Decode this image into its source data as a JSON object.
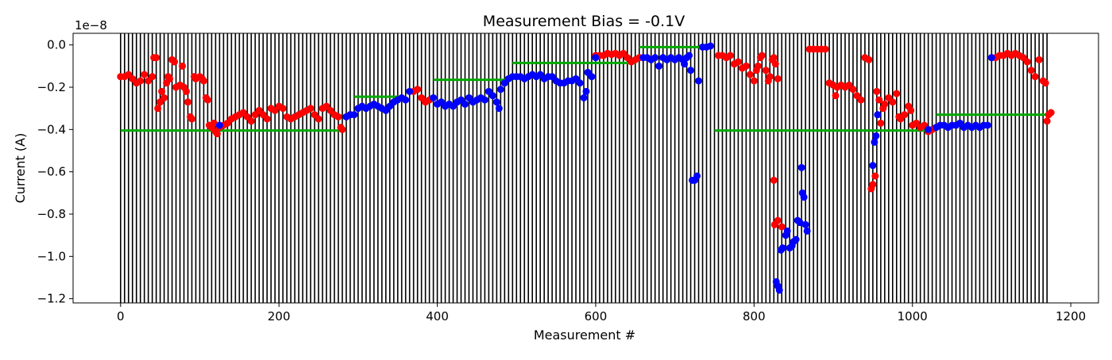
{
  "chart_data": {
    "type": "scatter",
    "title": "Measurement Bias = -0.1V",
    "xlabel": "Measurement #",
    "ylabel": "Current (A)",
    "y_offset_label": "1e−8",
    "xlim": [
      -60,
      1235
    ],
    "ylim": [
      -1.22,
      0.055
    ],
    "x_ticks": [
      0,
      200,
      400,
      600,
      800,
      1000,
      1200
    ],
    "x_tick_labels": [
      "0",
      "200",
      "400",
      "600",
      "800",
      "1000",
      "1200"
    ],
    "y_ticks": [
      0.0,
      -0.2,
      -0.4,
      -0.6,
      -0.8,
      -1.0,
      -1.2
    ],
    "y_tick_labels": [
      "0.0",
      "−0.2",
      "−0.4",
      "−0.6",
      "−0.8",
      "−1.0",
      "−1.2"
    ],
    "vlines": {
      "color": "#000000",
      "start": 0,
      "end": 1170,
      "step": 5
    },
    "hlines": {
      "color": "#00aa00",
      "segments": [
        {
          "x0": 0,
          "x1": 280,
          "y": -0.405
        },
        {
          "x0": 295,
          "x1": 350,
          "y": -0.245
        },
        {
          "x0": 395,
          "x1": 495,
          "y": -0.165
        },
        {
          "x0": 495,
          "x1": 650,
          "y": -0.085
        },
        {
          "x0": 655,
          "x1": 735,
          "y": -0.01
        },
        {
          "x0": 750,
          "x1": 1030,
          "y": -0.405
        },
        {
          "x0": 1030,
          "x1": 1170,
          "y": -0.33
        }
      ]
    },
    "series": [
      {
        "color": "#ff0000",
        "marker_size": 4.5,
        "points": [
          [
            0,
            -0.15
          ],
          [
            5,
            -0.15
          ],
          [
            10,
            -0.14
          ],
          [
            15,
            -0.16
          ],
          [
            20,
            -0.18
          ],
          [
            25,
            -0.17
          ],
          [
            30,
            -0.14
          ],
          [
            35,
            -0.17
          ],
          [
            40,
            -0.15
          ],
          [
            42,
            -0.06
          ],
          [
            45,
            -0.06
          ],
          [
            47,
            -0.3
          ],
          [
            50,
            -0.27
          ],
          [
            52,
            -0.22
          ],
          [
            55,
            -0.25
          ],
          [
            58,
            -0.18
          ],
          [
            60,
            -0.15
          ],
          [
            62,
            -0.16
          ],
          [
            65,
            -0.07
          ],
          [
            68,
            -0.08
          ],
          [
            70,
            -0.2
          ],
          [
            75,
            -0.19
          ],
          [
            78,
            -0.1
          ],
          [
            80,
            -0.2
          ],
          [
            83,
            -0.22
          ],
          [
            85,
            -0.27
          ],
          [
            88,
            -0.34
          ],
          [
            90,
            -0.35
          ],
          [
            93,
            -0.15
          ],
          [
            95,
            -0.16
          ],
          [
            100,
            -0.15
          ],
          [
            103,
            -0.16
          ],
          [
            105,
            -0.17
          ],
          [
            108,
            -0.25
          ],
          [
            110,
            -0.26
          ],
          [
            112,
            -0.38
          ],
          [
            115,
            -0.39
          ],
          [
            118,
            -0.37
          ],
          [
            120,
            -0.41
          ],
          [
            122,
            -0.42
          ],
          [
            125,
            -0.39
          ],
          [
            130,
            -0.38
          ],
          [
            135,
            -0.37
          ],
          [
            140,
            -0.35
          ],
          [
            145,
            -0.34
          ],
          [
            150,
            -0.33
          ],
          [
            155,
            -0.32
          ],
          [
            160,
            -0.34
          ],
          [
            165,
            -0.36
          ],
          [
            170,
            -0.33
          ],
          [
            175,
            -0.31
          ],
          [
            180,
            -0.33
          ],
          [
            185,
            -0.35
          ],
          [
            190,
            -0.3
          ],
          [
            195,
            -0.31
          ],
          [
            200,
            -0.29
          ],
          [
            205,
            -0.3
          ],
          [
            210,
            -0.34
          ],
          [
            215,
            -0.35
          ],
          [
            220,
            -0.34
          ],
          [
            225,
            -0.33
          ],
          [
            230,
            -0.32
          ],
          [
            235,
            -0.31
          ],
          [
            240,
            -0.3
          ],
          [
            245,
            -0.33
          ],
          [
            250,
            -0.35
          ],
          [
            255,
            -0.3
          ],
          [
            260,
            -0.29
          ],
          [
            265,
            -0.31
          ],
          [
            270,
            -0.33
          ],
          [
            275,
            -0.34
          ],
          [
            278,
            -0.39
          ],
          [
            280,
            -0.4
          ],
          [
            285,
            -0.34
          ],
          [
            290,
            -0.33
          ],
          [
            370,
            -0.22
          ],
          [
            375,
            -0.21
          ],
          [
            380,
            -0.25
          ],
          [
            385,
            -0.27
          ],
          [
            390,
            -0.26
          ],
          [
            600,
            -0.05
          ],
          [
            605,
            -0.05
          ],
          [
            610,
            -0.05
          ],
          [
            615,
            -0.04
          ],
          [
            620,
            -0.045
          ],
          [
            625,
            -0.04
          ],
          [
            630,
            -0.05
          ],
          [
            635,
            -0.04
          ],
          [
            640,
            -0.06
          ],
          [
            645,
            -0.08
          ],
          [
            650,
            -0.07
          ],
          [
            655,
            -0.06
          ],
          [
            755,
            -0.05
          ],
          [
            760,
            -0.05
          ],
          [
            765,
            -0.06
          ],
          [
            770,
            -0.05
          ],
          [
            775,
            -0.09
          ],
          [
            780,
            -0.08
          ],
          [
            785,
            -0.11
          ],
          [
            790,
            -0.1
          ],
          [
            795,
            -0.14
          ],
          [
            800,
            -0.17
          ],
          [
            803,
            -0.12
          ],
          [
            805,
            -0.1
          ],
          [
            808,
            -0.06
          ],
          [
            810,
            -0.05
          ],
          [
            815,
            -0.12
          ],
          [
            818,
            -0.17
          ],
          [
            820,
            -0.15
          ],
          [
            823,
            -0.07
          ],
          [
            825,
            -0.06
          ],
          [
            827,
            -0.09
          ],
          [
            830,
            -0.16
          ],
          [
            825,
            -0.64
          ],
          [
            826,
            -0.85
          ],
          [
            830,
            -0.83
          ],
          [
            835,
            -0.86
          ],
          [
            870,
            -0.02
          ],
          [
            875,
            -0.02
          ],
          [
            880,
            -0.02
          ],
          [
            885,
            -0.02
          ],
          [
            890,
            -0.02
          ],
          [
            895,
            -0.18
          ],
          [
            900,
            -0.19
          ],
          [
            903,
            -0.24
          ],
          [
            905,
            -0.2
          ],
          [
            910,
            -0.19
          ],
          [
            915,
            -0.2
          ],
          [
            920,
            -0.19
          ],
          [
            925,
            -0.21
          ],
          [
            930,
            -0.24
          ],
          [
            935,
            -0.26
          ],
          [
            940,
            -0.06
          ],
          [
            945,
            -0.07
          ],
          [
            948,
            -0.68
          ],
          [
            950,
            -0.66
          ],
          [
            953,
            -0.62
          ],
          [
            955,
            -0.22
          ],
          [
            958,
            -0.26
          ],
          [
            960,
            -0.37
          ],
          [
            963,
            -0.3
          ],
          [
            965,
            -0.28
          ],
          [
            970,
            -0.25
          ],
          [
            975,
            -0.27
          ],
          [
            980,
            -0.23
          ],
          [
            983,
            -0.34
          ],
          [
            985,
            -0.35
          ],
          [
            990,
            -0.33
          ],
          [
            995,
            -0.29
          ],
          [
            998,
            -0.31
          ],
          [
            1000,
            -0.38
          ],
          [
            1005,
            -0.37
          ],
          [
            1010,
            -0.39
          ],
          [
            1015,
            -0.38
          ],
          [
            1020,
            -0.41
          ],
          [
            1025,
            -0.4
          ],
          [
            1030,
            -0.39
          ],
          [
            1100,
            -0.06
          ],
          [
            1105,
            -0.06
          ],
          [
            1110,
            -0.05
          ],
          [
            1115,
            -0.05
          ],
          [
            1120,
            -0.04
          ],
          [
            1125,
            -0.05
          ],
          [
            1130,
            -0.04
          ],
          [
            1135,
            -0.05
          ],
          [
            1140,
            -0.06
          ],
          [
            1145,
            -0.08
          ],
          [
            1150,
            -0.12
          ],
          [
            1155,
            -0.15
          ],
          [
            1160,
            -0.07
          ],
          [
            1165,
            -0.17
          ],
          [
            1168,
            -0.18
          ],
          [
            1170,
            -0.36
          ],
          [
            1172,
            -0.33
          ],
          [
            1175,
            -0.32
          ]
        ]
      },
      {
        "color": "#0000ff",
        "marker_size": 4.5,
        "points": [
          [
            125,
            -0.38
          ],
          [
            285,
            -0.34
          ],
          [
            290,
            -0.33
          ],
          [
            295,
            -0.33
          ],
          [
            300,
            -0.3
          ],
          [
            305,
            -0.29
          ],
          [
            310,
            -0.3
          ],
          [
            315,
            -0.29
          ],
          [
            320,
            -0.28
          ],
          [
            325,
            -0.29
          ],
          [
            330,
            -0.3
          ],
          [
            335,
            -0.31
          ],
          [
            340,
            -0.29
          ],
          [
            345,
            -0.27
          ],
          [
            350,
            -0.26
          ],
          [
            355,
            -0.25
          ],
          [
            360,
            -0.26
          ],
          [
            365,
            -0.22
          ],
          [
            395,
            -0.25
          ],
          [
            400,
            -0.28
          ],
          [
            405,
            -0.27
          ],
          [
            410,
            -0.29
          ],
          [
            415,
            -0.28
          ],
          [
            420,
            -0.29
          ],
          [
            425,
            -0.27
          ],
          [
            430,
            -0.26
          ],
          [
            435,
            -0.28
          ],
          [
            440,
            -0.25
          ],
          [
            445,
            -0.27
          ],
          [
            450,
            -0.26
          ],
          [
            455,
            -0.25
          ],
          [
            460,
            -0.26
          ],
          [
            465,
            -0.22
          ],
          [
            470,
            -0.24
          ],
          [
            475,
            -0.27
          ],
          [
            478,
            -0.3
          ],
          [
            480,
            -0.21
          ],
          [
            485,
            -0.18
          ],
          [
            490,
            -0.16
          ],
          [
            495,
            -0.15
          ],
          [
            500,
            -0.15
          ],
          [
            505,
            -0.15
          ],
          [
            510,
            -0.16
          ],
          [
            515,
            -0.15
          ],
          [
            520,
            -0.14
          ],
          [
            525,
            -0.15
          ],
          [
            530,
            -0.14
          ],
          [
            535,
            -0.16
          ],
          [
            540,
            -0.15
          ],
          [
            545,
            -0.15
          ],
          [
            550,
            -0.17
          ],
          [
            555,
            -0.18
          ],
          [
            560,
            -0.18
          ],
          [
            565,
            -0.17
          ],
          [
            570,
            -0.17
          ],
          [
            575,
            -0.16
          ],
          [
            580,
            -0.18
          ],
          [
            585,
            -0.25
          ],
          [
            588,
            -0.22
          ],
          [
            590,
            -0.13
          ],
          [
            595,
            -0.15
          ],
          [
            600,
            -0.06
          ],
          [
            660,
            -0.06
          ],
          [
            665,
            -0.06
          ],
          [
            670,
            -0.07
          ],
          [
            675,
            -0.06
          ],
          [
            680,
            -0.1
          ],
          [
            685,
            -0.06
          ],
          [
            690,
            -0.07
          ],
          [
            695,
            -0.06
          ],
          [
            700,
            -0.07
          ],
          [
            705,
            -0.06
          ],
          [
            710,
            -0.07
          ],
          [
            712,
            -0.09
          ],
          [
            715,
            -0.06
          ],
          [
            718,
            -0.05
          ],
          [
            720,
            -0.12
          ],
          [
            722,
            -0.64
          ],
          [
            725,
            -0.64
          ],
          [
            728,
            -0.62
          ],
          [
            730,
            -0.17
          ],
          [
            735,
            -0.01
          ],
          [
            740,
            -0.01
          ],
          [
            745,
            -0.005
          ],
          [
            828,
            -1.12
          ],
          [
            830,
            -1.14
          ],
          [
            832,
            -1.16
          ],
          [
            834,
            -0.97
          ],
          [
            836,
            -0.96
          ],
          [
            840,
            -0.9
          ],
          [
            842,
            -0.88
          ],
          [
            845,
            -0.96
          ],
          [
            848,
            -0.95
          ],
          [
            850,
            -0.93
          ],
          [
            853,
            -0.92
          ],
          [
            855,
            -0.83
          ],
          [
            858,
            -0.84
          ],
          [
            860,
            -0.58
          ],
          [
            861,
            -0.7
          ],
          [
            863,
            -0.72
          ],
          [
            865,
            -0.85
          ],
          [
            867,
            -0.88
          ],
          [
            950,
            -0.57
          ],
          [
            952,
            -0.46
          ],
          [
            954,
            -0.43
          ],
          [
            956,
            -0.33
          ],
          [
            1020,
            -0.4
          ],
          [
            1030,
            -0.39
          ],
          [
            1035,
            -0.38
          ],
          [
            1040,
            -0.38
          ],
          [
            1045,
            -0.39
          ],
          [
            1050,
            -0.38
          ],
          [
            1055,
            -0.38
          ],
          [
            1060,
            -0.37
          ],
          [
            1065,
            -0.39
          ],
          [
            1070,
            -0.38
          ],
          [
            1075,
            -0.39
          ],
          [
            1080,
            -0.38
          ],
          [
            1085,
            -0.39
          ],
          [
            1090,
            -0.38
          ],
          [
            1095,
            -0.38
          ],
          [
            1100,
            -0.06
          ]
        ]
      }
    ]
  }
}
